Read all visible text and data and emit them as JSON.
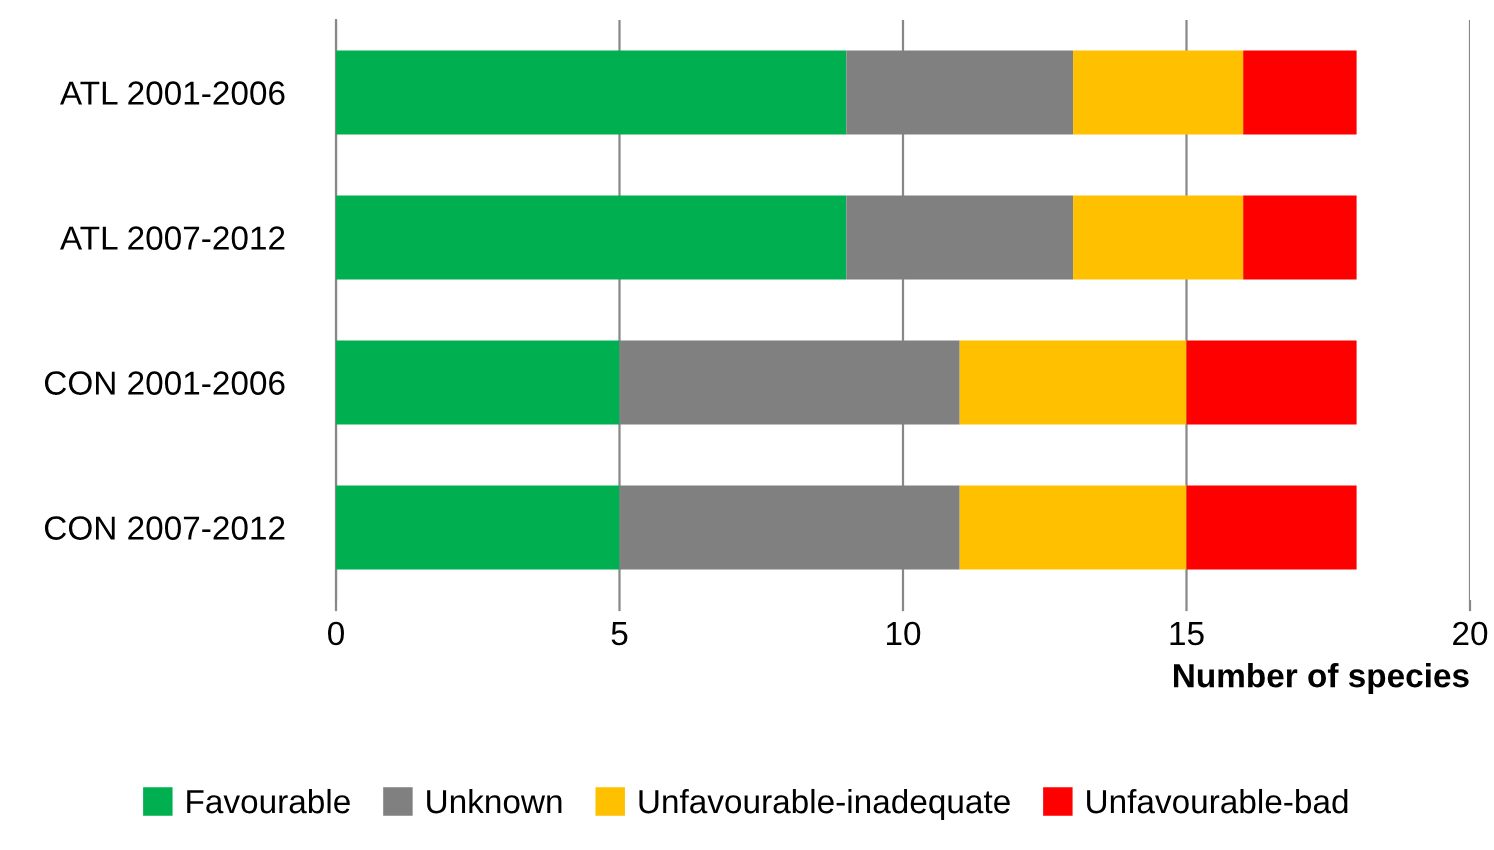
{
  "chart_data": {
    "type": "bar",
    "orientation": "horizontal",
    "stacked": true,
    "categories": [
      "ATL 2001-2006",
      "ATL 2007-2012",
      "CON 2001-2006",
      "CON 2007-2012"
    ],
    "series": [
      {
        "name": "Favourable",
        "color": "#00b050",
        "values": [
          9,
          9,
          5,
          5
        ]
      },
      {
        "name": "Unknown",
        "color": "#808080",
        "values": [
          4,
          4,
          6,
          6
        ]
      },
      {
        "name": "Unfavourable-inadequate",
        "color": "#ffc000",
        "values": [
          3,
          3,
          4,
          4
        ]
      },
      {
        "name": "Unfavourable-bad",
        "color": "#ff0000",
        "values": [
          2,
          2,
          3,
          3
        ]
      }
    ],
    "xlabel": "Number of species",
    "xlim": [
      0,
      20
    ],
    "xticks": [
      0,
      5,
      10,
      15,
      20
    ],
    "grid": "x",
    "legend": "bottom"
  }
}
